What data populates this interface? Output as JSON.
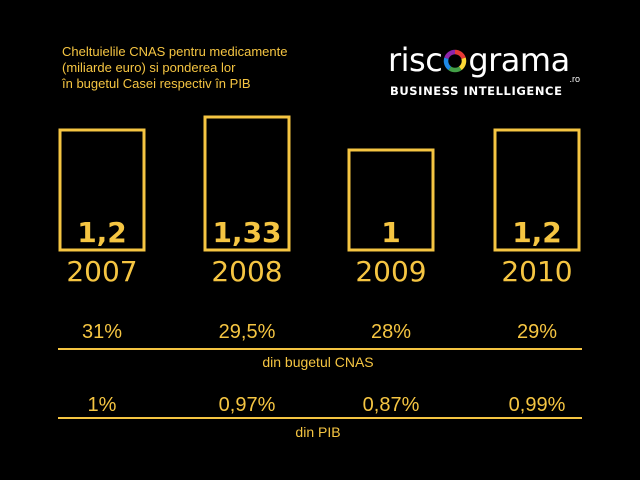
{
  "title": {
    "line1": "Cheltuielile CNAS pentru medicamente",
    "line2": "(miliarde euro) si ponderea lor",
    "line3": "în bugetul Casei respectiv în PIB"
  },
  "logo": {
    "word_left": "risc",
    "word_right": "grama",
    "tld": ".ro",
    "tagline": "BUSINESS INTELLIGENCE",
    "ring_colors": [
      "#e53935",
      "#fdd835",
      "#43a047",
      "#1e88e5",
      "#8e24aa"
    ]
  },
  "colors": {
    "accent": "#f5c542",
    "background": "#000000"
  },
  "chart_data": {
    "type": "bar",
    "categories": [
      "2007",
      "2008",
      "2009",
      "2010"
    ],
    "values": [
      1.2,
      1.33,
      1,
      1.2
    ],
    "value_labels": [
      "1,2",
      "1,33",
      "1",
      "1,2"
    ],
    "title": "Cheltuielile CNAS pentru medicamente (miliarde euro) si ponderea lor în bugetul Casei respectiv în PIB",
    "grid": false,
    "legend": "none",
    "style": "outlined bars"
  },
  "share_cnas": {
    "label": "din bugetul CNAS",
    "values": [
      "31%",
      "29,5%",
      "28%",
      "29%"
    ]
  },
  "share_gdp": {
    "label": "din PIB",
    "values": [
      "1%",
      "0,97%",
      "0,87%",
      "0,99%"
    ]
  }
}
